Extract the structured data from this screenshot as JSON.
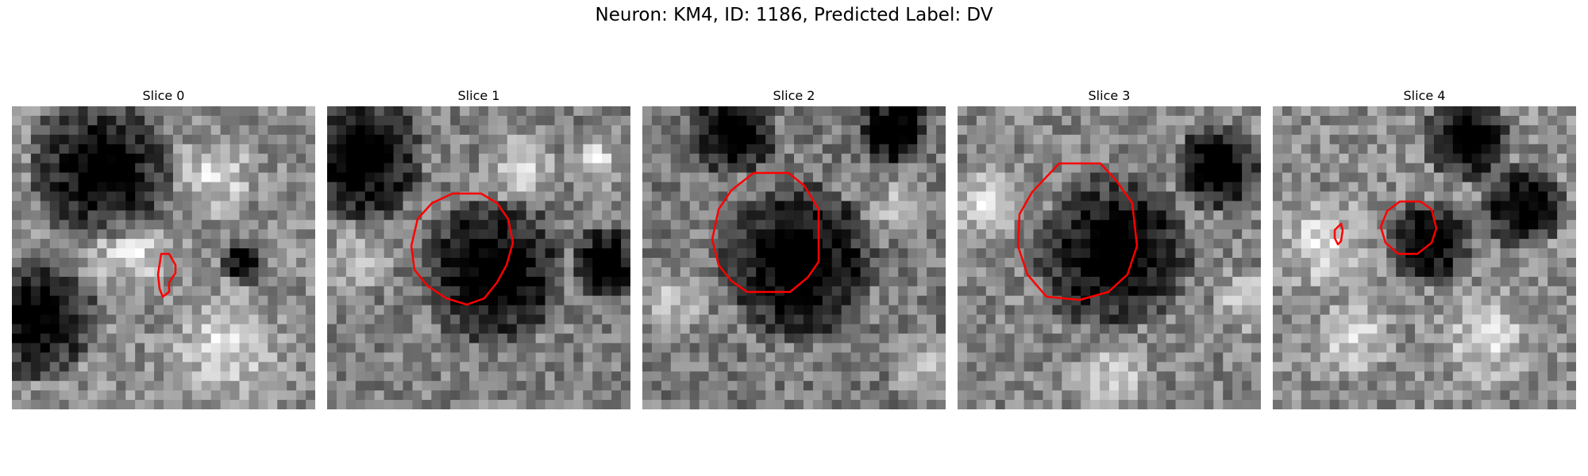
{
  "figure": {
    "title": "Neuron: KM4, ID: 1186, Predicted Label: DV"
  },
  "panels": [
    {
      "title": "Slice 0"
    },
    {
      "title": "Slice 1"
    },
    {
      "title": "Slice 2"
    },
    {
      "title": "Slice 3"
    },
    {
      "title": "Slice 4"
    }
  ],
  "colors": {
    "contour": "#ff0000",
    "background": "#ffffff"
  }
}
